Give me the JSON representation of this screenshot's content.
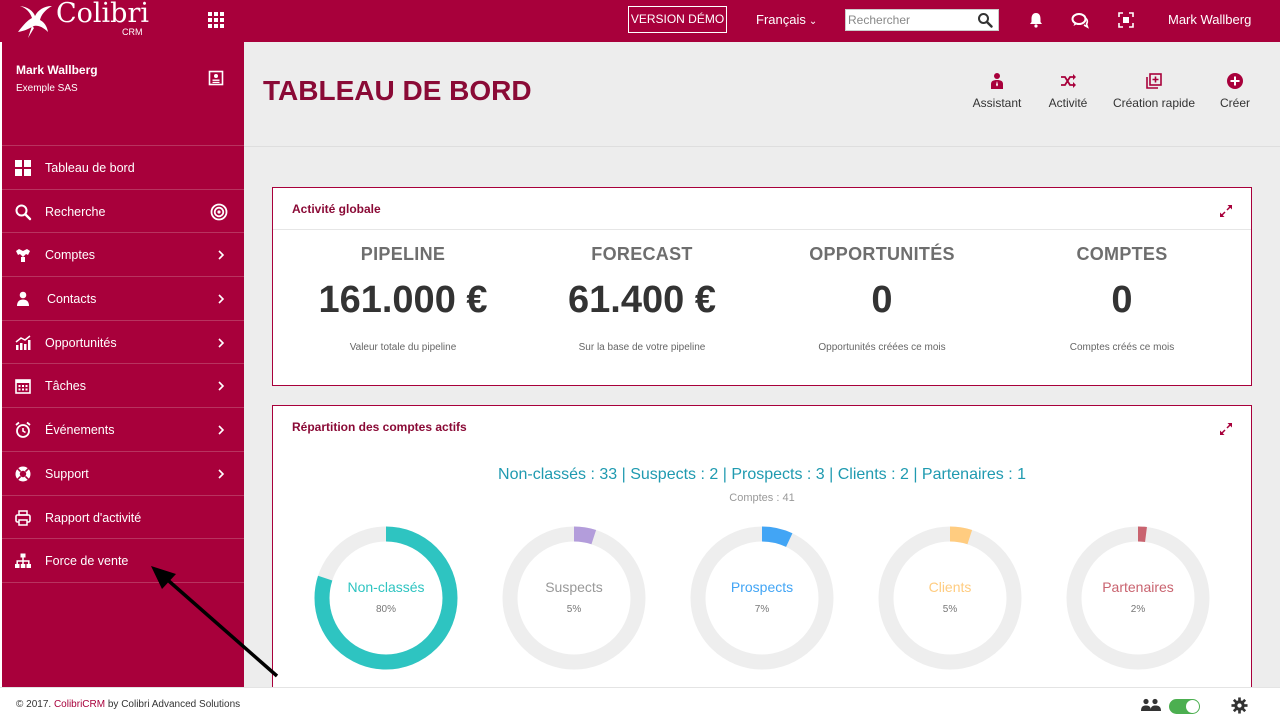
{
  "topbar": {
    "logo_name": "Colibri",
    "logo_sub": "CRM",
    "demo_label": "VERSION DÉMO",
    "language": "Français",
    "search_placeholder": "Rechercher",
    "user": "Mark Wallberg"
  },
  "sidebar": {
    "user_name": "Mark Wallberg",
    "company": "Exemple SAS",
    "items": [
      {
        "label": "Tableau de bord",
        "icon": "dashboard-icon"
      },
      {
        "label": "Recherche",
        "icon": "search-icon"
      },
      {
        "label": "Comptes",
        "icon": "accounts-icon"
      },
      {
        "label": "Contacts",
        "icon": "contacts-icon"
      },
      {
        "label": "Opportunités",
        "icon": "chart-icon"
      },
      {
        "label": "Tâches",
        "icon": "calendar-icon"
      },
      {
        "label": "Événements",
        "icon": "alarm-clock-icon"
      },
      {
        "label": "Support",
        "icon": "lifebuoy-icon"
      },
      {
        "label": "Rapport d'activité",
        "icon": "printer-icon"
      },
      {
        "label": "Force de vente",
        "icon": "org-chart-icon"
      }
    ]
  },
  "header": {
    "title": "TABLEAU DE BORD",
    "actions": [
      {
        "label": "Assistant",
        "icon": "assistant-icon"
      },
      {
        "label": "Activité",
        "icon": "shuffle-icon"
      },
      {
        "label": "Création rapide",
        "icon": "quick-create-icon"
      },
      {
        "label": "Créer",
        "icon": "plus-circle-icon"
      }
    ]
  },
  "activity_panel": {
    "title": "Activité globale",
    "kpis": [
      {
        "label": "PIPELINE",
        "value": "161.000 €",
        "desc": "Valeur totale du pipeline"
      },
      {
        "label": "FORECAST",
        "value": "61.400 €",
        "desc": "Sur la base de votre pipeline"
      },
      {
        "label": "OPPORTUNITÉS",
        "value": "0",
        "desc": "Opportunités créées ce mois"
      },
      {
        "label": "COMPTES",
        "value": "0",
        "desc": "Comptes créés ce mois"
      }
    ]
  },
  "accounts_panel": {
    "title": "Répartition des comptes actifs",
    "summary": "Non-classés : 33 | Suspects : 2 | Prospects : 3 | Clients : 2 | Partenaires : 1",
    "total": "Comptes : 41",
    "donuts": [
      {
        "label": "Non-classés",
        "percent_text": "80%",
        "fraction": 0.8,
        "color": "#2ec4c1",
        "label_color": "#2ec4c1"
      },
      {
        "label": "Suspects",
        "percent_text": "5%",
        "fraction": 0.05,
        "color": "#b39ddb",
        "label_color": "#999999"
      },
      {
        "label": "Prospects",
        "percent_text": "7%",
        "fraction": 0.07,
        "color": "#42a5f5",
        "label_color": "#42a5f5"
      },
      {
        "label": "Clients",
        "percent_text": "5%",
        "fraction": 0.05,
        "color": "#ffcc80",
        "label_color": "#ffcc80"
      },
      {
        "label": "Partenaires",
        "percent_text": "2%",
        "fraction": 0.02,
        "color": "#c9636f",
        "label_color": "#c9636f"
      }
    ],
    "track_color": "#eeeeee"
  },
  "footer": {
    "copyright_prefix": "© 2017. ",
    "brand": "ColibriCRM",
    "copyright_suffix": " by Colibri Advanced Solutions"
  },
  "colors": {
    "brand": "#a8003b",
    "title": "#8a0a36",
    "summary": "#1f9ab0",
    "toggle": "#4caf50"
  }
}
